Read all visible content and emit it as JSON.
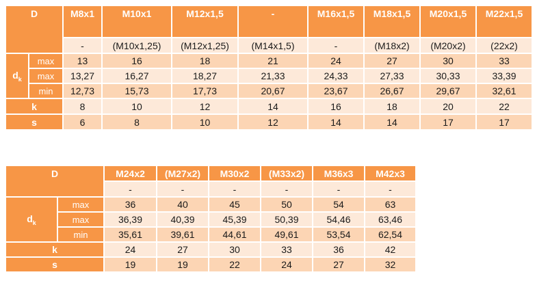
{
  "table1": {
    "corner": "D",
    "headers": [
      "M8x1",
      "M10x1",
      "M12x1,5",
      "-",
      "M16x1,5",
      "M18x1,5",
      "M20x1,5",
      "M22x1,5"
    ],
    "alt": [
      "-",
      "(M10x1,25)",
      "(M12x1,25)",
      "(M14x1,5)",
      "-",
      "(M18x2)",
      "(M20x2)",
      "(22x2)"
    ],
    "dk_label": "d",
    "dk_sub": "k",
    "rows": [
      {
        "label": "max",
        "values": [
          "13",
          "16",
          "18",
          "21",
          "24",
          "27",
          "30",
          "33"
        ]
      },
      {
        "label": "max",
        "values": [
          "13,27",
          "16,27",
          "18,27",
          "21,33",
          "24,33",
          "27,33",
          "30,33",
          "33,39"
        ]
      },
      {
        "label": "min",
        "values": [
          "12,73",
          "15,73",
          "17,73",
          "20,67",
          "23,67",
          "26,67",
          "29,67",
          "32,61"
        ]
      }
    ],
    "k": {
      "label": "k",
      "values": [
        "8",
        "10",
        "12",
        "14",
        "16",
        "18",
        "20",
        "22"
      ]
    },
    "s": {
      "label": "s",
      "values": [
        "6",
        "8",
        "10",
        "12",
        "14",
        "14",
        "17",
        "17"
      ]
    }
  },
  "table2": {
    "corner": "D",
    "headers": [
      "M24x2",
      "(M27x2)",
      "M30x2",
      "(M33x2)",
      "M36x3",
      "M42x3"
    ],
    "alt": [
      "-",
      "-",
      "-",
      "-",
      "-",
      "-"
    ],
    "dk_label": "d",
    "dk_sub": "k",
    "rows": [
      {
        "label": "max",
        "values": [
          "36",
          "40",
          "45",
          "50",
          "54",
          "63"
        ]
      },
      {
        "label": "max",
        "values": [
          "36,39",
          "40,39",
          "45,39",
          "50,39",
          "54,46",
          "63,46"
        ]
      },
      {
        "label": "min",
        "values": [
          "35,61",
          "39,61",
          "44,61",
          "49,61",
          "53,54",
          "62,54"
        ]
      }
    ],
    "k": {
      "label": "k",
      "values": [
        "24",
        "27",
        "30",
        "33",
        "36",
        "42"
      ]
    },
    "s": {
      "label": "s",
      "values": [
        "19",
        "19",
        "22",
        "24",
        "27",
        "32"
      ]
    }
  }
}
